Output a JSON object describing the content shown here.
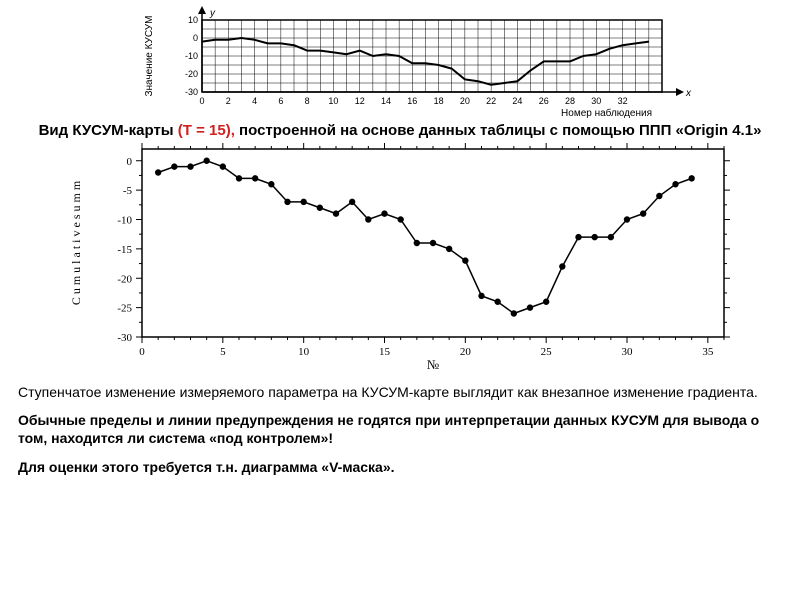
{
  "chart1": {
    "type": "line",
    "ylabel_top": "y",
    "ylabel_left": "Значение КУСУМ",
    "xlabel_right": "x",
    "xlabel_bottom": "Номер наблюдения",
    "xlim": [
      0,
      35
    ],
    "ylim": [
      -30,
      10
    ],
    "xtick_step": 2,
    "ytick_step": 10,
    "xticks": [
      0,
      2,
      4,
      6,
      8,
      10,
      12,
      14,
      16,
      18,
      20,
      22,
      24,
      26,
      28,
      30,
      32
    ],
    "yticks": [
      -30,
      -20,
      -10,
      0,
      10
    ],
    "x": [
      0,
      1,
      2,
      3,
      4,
      5,
      6,
      7,
      8,
      9,
      10,
      11,
      12,
      13,
      14,
      15,
      16,
      17,
      18,
      19,
      20,
      21,
      22,
      23,
      24,
      25,
      26,
      27,
      28,
      29,
      30,
      31,
      32,
      33,
      34
    ],
    "y": [
      -2,
      -1,
      -1,
      0,
      -1,
      -3,
      -3,
      -4,
      -7,
      -7,
      -8,
      -9,
      -7,
      -10,
      -9,
      -10,
      -14,
      -14,
      -15,
      -17,
      -23,
      -24,
      -26,
      -25,
      -24,
      -18,
      -13,
      -13,
      -13,
      -10,
      -9,
      -6,
      -4,
      -3,
      -2
    ],
    "grid_color": "#000000",
    "background_color": "#ffffff",
    "line_color": "#000000",
    "line_width": 2,
    "tick_fontsize": 9,
    "label_fontsize": 10,
    "marker": "none"
  },
  "caption": {
    "prefix": "Вид КУСУМ-карты ",
    "highlight": "(Т = 15),",
    "suffix": " построенной  на основе данных таблицы с помощью ППП «Origin 4.1»"
  },
  "chart2": {
    "type": "line",
    "ylabel": "C u m u l a t i v e  s u m m",
    "xlabel": "№",
    "xlim": [
      0,
      36
    ],
    "ylim": [
      -30,
      2
    ],
    "xticks": [
      0,
      5,
      10,
      15,
      20,
      25,
      30,
      35
    ],
    "yticks": [
      -30,
      -25,
      -20,
      -15,
      -10,
      -5,
      0
    ],
    "x": [
      1,
      2,
      3,
      4,
      5,
      6,
      7,
      8,
      9,
      10,
      11,
      12,
      13,
      14,
      15,
      16,
      17,
      18,
      19,
      20,
      21,
      22,
      23,
      24,
      25,
      26,
      27,
      28,
      29,
      30,
      31,
      32,
      33,
      34
    ],
    "y": [
      -2,
      -1,
      -1,
      0,
      -1,
      -3,
      -3,
      -4,
      -7,
      -7,
      -8,
      -9,
      -7,
      -10,
      -9,
      -10,
      -14,
      -14,
      -15,
      -17,
      -23,
      -24,
      -26,
      -25,
      -24,
      -18,
      -13,
      -13,
      -13,
      -10,
      -9,
      -6,
      -4,
      -3
    ],
    "line_color": "#000000",
    "line_width": 1.5,
    "marker": "circle",
    "marker_size": 3.2,
    "marker_fill": "#000000",
    "tick_fontsize": 11,
    "tick_font_family": "serif",
    "label_fontsize": 12,
    "background_color": "#ffffff"
  },
  "text": {
    "p1": "Ступенчатое изменение измеряемого параметра на КУСУМ-карте выглядит как внезапное изменение градиента.",
    "p2": "Обычные пределы и линии предупреждения не годятся при интерпретации данных КУСУМ для вывода о том, находится ли система «под контролем»!",
    "p3": "Для оценки этого требуется т.н. диаграмма «V-маска»."
  }
}
